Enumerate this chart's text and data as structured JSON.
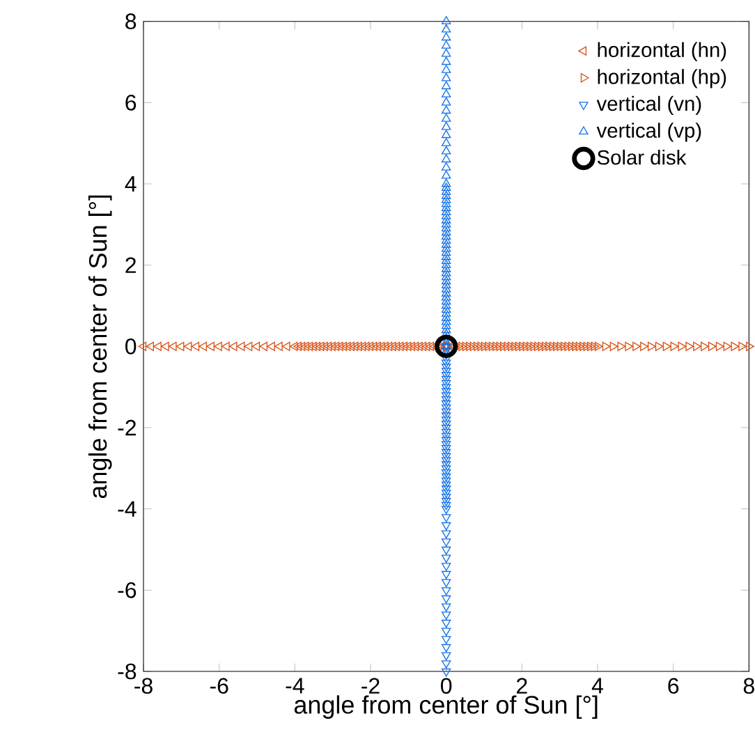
{
  "chart_data": {
    "type": "scatter",
    "xlabel": "angle from center of Sun  [°]",
    "ylabel": "angle from center of Sun  [°]",
    "xlim": [
      -8,
      8
    ],
    "ylim": [
      -8,
      8
    ],
    "xticks": [
      -8,
      -6,
      -4,
      -2,
      0,
      2,
      4,
      6,
      8
    ],
    "yticks": [
      -8,
      -6,
      -4,
      -2,
      0,
      2,
      4,
      6,
      8
    ],
    "grid": false,
    "legend": "top right",
    "series": [
      {
        "name": "horizontal (hn)",
        "color": "#d95319",
        "marker": "triangle",
        "x": [
          0,
          -0.1,
          -0.2,
          -0.3,
          -0.4,
          -0.5,
          -0.6,
          -0.7,
          -0.8,
          -0.9,
          -1,
          -1.1,
          -1.2,
          -1.3,
          -1.4,
          -1.5,
          -1.6,
          -1.7,
          -1.8,
          -1.9,
          -2,
          -2.1,
          -2.2,
          -2.3,
          -2.4,
          -2.5,
          -2.6,
          -2.7,
          -2.8,
          -2.9,
          -3,
          -3.1,
          -3.2,
          -3.3,
          -3.4,
          -3.5,
          -3.6,
          -3.7,
          -3.8,
          -3.9,
          -4,
          -4.2,
          -4.4,
          -4.6,
          -4.8,
          -5,
          -5.2,
          -5.4,
          -5.6,
          -5.8,
          -6,
          -6.2,
          -6.4,
          -6.6,
          -6.8,
          -7,
          -7.2,
          -7.4,
          -7.6,
          -7.8,
          -8
        ],
        "values": [
          0,
          0,
          0,
          0,
          0,
          0,
          0,
          0,
          0,
          0,
          0,
          0,
          0,
          0,
          0,
          0,
          0,
          0,
          0,
          0,
          0,
          0,
          0,
          0,
          0,
          0,
          0,
          0,
          0,
          0,
          0,
          0,
          0,
          0,
          0,
          0,
          0,
          0,
          0,
          0,
          0,
          0,
          0,
          0,
          0,
          0,
          0,
          0,
          0,
          0,
          0,
          0,
          0,
          0,
          0,
          0,
          0,
          0,
          0,
          0,
          0
        ]
      },
      {
        "name": "horizontal (hp)",
        "color": "#d95319",
        "marker": "triangle",
        "x": [
          0,
          0.1,
          0.2,
          0.3,
          0.4,
          0.5,
          0.6,
          0.7,
          0.8,
          0.9,
          1,
          1.1,
          1.2,
          1.3,
          1.4,
          1.5,
          1.6,
          1.7,
          1.8,
          1.9,
          2,
          2.1,
          2.2,
          2.3,
          2.4,
          2.5,
          2.6,
          2.7,
          2.8,
          2.9,
          3,
          3.1,
          3.2,
          3.3,
          3.4,
          3.5,
          3.6,
          3.7,
          3.8,
          3.9,
          4,
          4.2,
          4.4,
          4.6,
          4.8,
          5,
          5.2,
          5.4,
          5.6,
          5.8,
          6,
          6.2,
          6.4,
          6.6,
          6.8,
          7,
          7.2,
          7.4,
          7.6,
          7.8,
          8
        ],
        "values": [
          0,
          0,
          0,
          0,
          0,
          0,
          0,
          0,
          0,
          0,
          0,
          0,
          0,
          0,
          0,
          0,
          0,
          0,
          0,
          0,
          0,
          0,
          0,
          0,
          0,
          0,
          0,
          0,
          0,
          0,
          0,
          0,
          0,
          0,
          0,
          0,
          0,
          0,
          0,
          0,
          0,
          0,
          0,
          0,
          0,
          0,
          0,
          0,
          0,
          0,
          0,
          0,
          0,
          0,
          0,
          0,
          0,
          0,
          0,
          0,
          0
        ]
      },
      {
        "name": "vertical (vn)",
        "color": "#1170e6",
        "marker": "triangle",
        "x": [
          0,
          0,
          0,
          0,
          0,
          0,
          0,
          0,
          0,
          0,
          0,
          0,
          0,
          0,
          0,
          0,
          0,
          0,
          0,
          0,
          0,
          0,
          0,
          0,
          0,
          0,
          0,
          0,
          0,
          0,
          0,
          0,
          0,
          0,
          0,
          0,
          0,
          0,
          0,
          0,
          0,
          0,
          0,
          0,
          0,
          0,
          0,
          0,
          0,
          0,
          0,
          0,
          0,
          0,
          0,
          0,
          0,
          0,
          0,
          0,
          0
        ],
        "values": [
          0,
          -0.1,
          -0.2,
          -0.3,
          -0.4,
          -0.5,
          -0.6,
          -0.7,
          -0.8,
          -0.9,
          -1,
          -1.1,
          -1.2,
          -1.3,
          -1.4,
          -1.5,
          -1.6,
          -1.7,
          -1.8,
          -1.9,
          -2,
          -2.1,
          -2.2,
          -2.3,
          -2.4,
          -2.5,
          -2.6,
          -2.7,
          -2.8,
          -2.9,
          -3,
          -3.1,
          -3.2,
          -3.3,
          -3.4,
          -3.5,
          -3.6,
          -3.7,
          -3.8,
          -3.9,
          -4,
          -4.2,
          -4.4,
          -4.6,
          -4.8,
          -5,
          -5.2,
          -5.4,
          -5.6,
          -5.8,
          -6,
          -6.2,
          -6.4,
          -6.6,
          -6.8,
          -7,
          -7.2,
          -7.4,
          -7.6,
          -7.8,
          -8
        ]
      },
      {
        "name": "vertical (vp)",
        "color": "#1170e6",
        "marker": "triangle",
        "x": [
          0,
          0,
          0,
          0,
          0,
          0,
          0,
          0,
          0,
          0,
          0,
          0,
          0,
          0,
          0,
          0,
          0,
          0,
          0,
          0,
          0,
          0,
          0,
          0,
          0,
          0,
          0,
          0,
          0,
          0,
          0,
          0,
          0,
          0,
          0,
          0,
          0,
          0,
          0,
          0,
          0,
          0,
          0,
          0,
          0,
          0,
          0,
          0,
          0,
          0,
          0,
          0,
          0,
          0,
          0,
          0,
          0,
          0,
          0,
          0,
          0
        ],
        "values": [
          0,
          0.1,
          0.2,
          0.3,
          0.4,
          0.5,
          0.6,
          0.7,
          0.8,
          0.9,
          1,
          1.1,
          1.2,
          1.3,
          1.4,
          1.5,
          1.6,
          1.7,
          1.8,
          1.9,
          2,
          2.1,
          2.2,
          2.3,
          2.4,
          2.5,
          2.6,
          2.7,
          2.8,
          2.9,
          3,
          3.1,
          3.2,
          3.3,
          3.4,
          3.5,
          3.6,
          3.7,
          3.8,
          3.9,
          4,
          4.2,
          4.4,
          4.6,
          4.8,
          5,
          5.2,
          5.4,
          5.6,
          5.8,
          6,
          6.2,
          6.4,
          6.6,
          6.8,
          7,
          7.2,
          7.4,
          7.6,
          7.8,
          8
        ]
      },
      {
        "name": "Solar disk",
        "color": "#000000",
        "marker": "circle",
        "x": [
          0
        ],
        "values": [
          0
        ]
      }
    ]
  }
}
